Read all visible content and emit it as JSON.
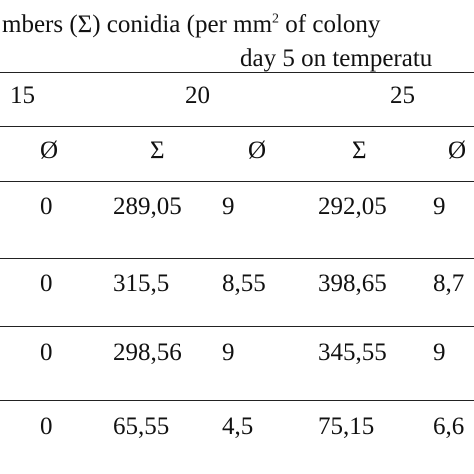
{
  "header": {
    "line1_pre": "mbers (Σ) conidia (per mm",
    "line1_sup": "2",
    "line1_post": " of colony",
    "line2": "day 5 on temperatu"
  },
  "temperatures": [
    "15",
    "20",
    "25"
  ],
  "symbols": [
    "Ø",
    "Σ",
    "Ø",
    "Σ",
    "Ø"
  ],
  "rows": [
    [
      "0",
      "289,05",
      "9",
      "292,05",
      "9"
    ],
    [
      "0",
      "315,5",
      "8,55",
      "398,65",
      "8,7"
    ],
    [
      "0",
      "298,56",
      "9",
      "345,55",
      "9"
    ],
    [
      "0",
      "65,55",
      "4,5",
      "75,15",
      "6,6"
    ]
  ]
}
